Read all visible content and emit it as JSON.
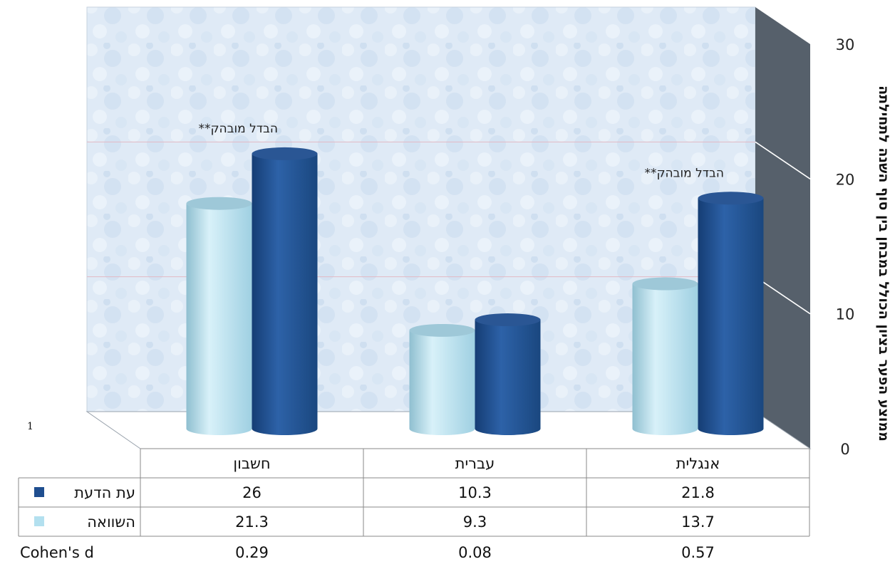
{
  "chart_data": {
    "type": "bar",
    "categories": [
      "חשבון",
      "עברית",
      "אנגלית"
    ],
    "series": [
      {
        "name": "השוואה",
        "values": [
          21.3,
          9.3,
          13.7
        ],
        "color": "#b3e0ef"
      },
      {
        "name": "עת הדעת",
        "values": [
          26,
          10.3,
          21.8
        ],
        "color": "#1f4e8f"
      }
    ],
    "extra_row": {
      "label": "Cohen's d",
      "values": [
        "0.29",
        "0.08",
        "0.57"
      ]
    },
    "annotations": [
      {
        "category": "חשבון",
        "text": "**הבדל מובהק"
      },
      {
        "category": "אנגלית",
        "text": "**הבדל מובהק"
      }
    ],
    "ylabel": "ממוצע הפער בציון הכולל במבחן בין סוף השנה לתחילתה",
    "yticks": [
      0,
      10,
      20,
      30
    ],
    "ylim": [
      0,
      30
    ],
    "grid": true,
    "legend": "data-table",
    "stray_mark": "1"
  }
}
